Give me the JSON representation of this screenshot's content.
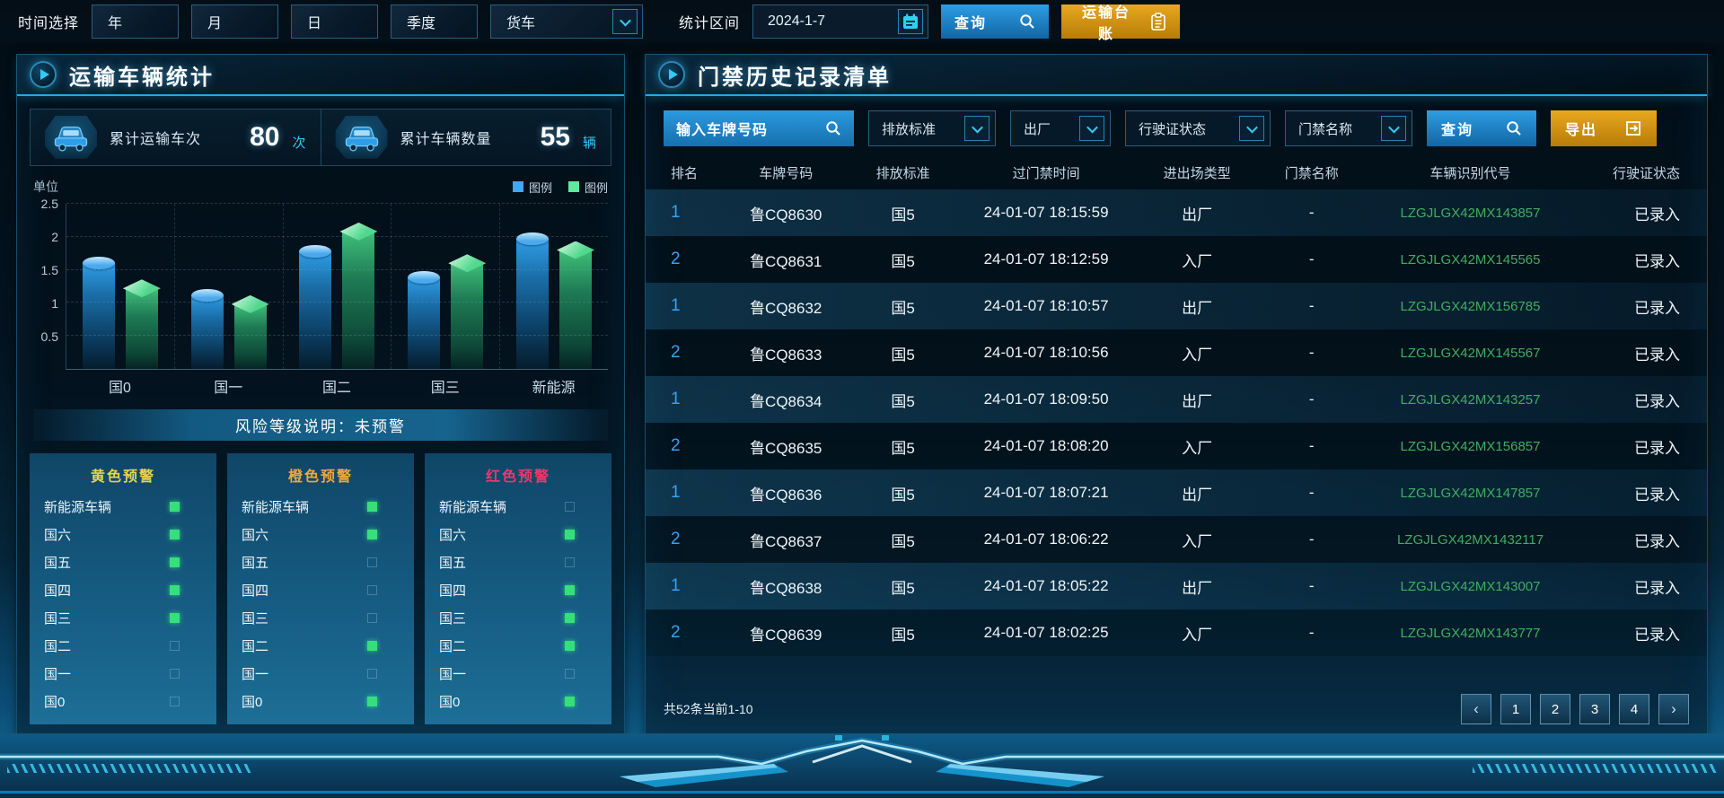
{
  "topbar": {
    "time_label": "时间选择",
    "time_buttons": [
      "年",
      "月",
      "日",
      "季度"
    ],
    "vehicle_select": "货车",
    "range_label": "统计区间",
    "date_value": "2024-1-7",
    "query_label": "查询",
    "ledger_label": "运输台账"
  },
  "left_panel": {
    "title": "运输车辆统计",
    "stats": [
      {
        "label": "累计运输车次",
        "value": "80",
        "unit": "次"
      },
      {
        "label": "累计车辆数量",
        "value": "55",
        "unit": "辆"
      }
    ],
    "risk_note": "风险等级说明：未预警",
    "warnings": {
      "columns": [
        {
          "title": "黄色预警",
          "color": "#e8d34a",
          "items": [
            {
              "label": "新能源车辆",
              "on": true
            },
            {
              "label": "国六",
              "on": true
            },
            {
              "label": "国五",
              "on": true
            },
            {
              "label": "国四",
              "on": true
            },
            {
              "label": "国三",
              "on": true
            },
            {
              "label": "国二",
              "on": false
            },
            {
              "label": "国一",
              "on": false
            },
            {
              "label": "国0",
              "on": false
            }
          ]
        },
        {
          "title": "橙色预警",
          "color": "#f0a83c",
          "items": [
            {
              "label": "新能源车辆",
              "on": true
            },
            {
              "label": "国六",
              "on": true
            },
            {
              "label": "国五",
              "on": false
            },
            {
              "label": "国四",
              "on": false
            },
            {
              "label": "国三",
              "on": false
            },
            {
              "label": "国二",
              "on": true
            },
            {
              "label": "国一",
              "on": false
            },
            {
              "label": "国0",
              "on": true
            }
          ]
        },
        {
          "title": "红色预警",
          "color": "#f0356e",
          "items": [
            {
              "label": "新能源车辆",
              "on": false
            },
            {
              "label": "国六",
              "on": true
            },
            {
              "label": "国五",
              "on": false
            },
            {
              "label": "国四",
              "on": true
            },
            {
              "label": "国三",
              "on": true
            },
            {
              "label": "国二",
              "on": true
            },
            {
              "label": "国一",
              "on": false
            },
            {
              "label": "国0",
              "on": true
            }
          ]
        }
      ]
    }
  },
  "chart_data": {
    "type": "bar",
    "title": "",
    "unit_label": "单位",
    "categories": [
      "国0",
      "国一",
      "国二",
      "国三",
      "新能源"
    ],
    "series": [
      {
        "name": "图例",
        "color": "#41a7f0",
        "values": [
          1.6,
          1.12,
          1.78,
          1.38,
          1.97
        ]
      },
      {
        "name": "图例",
        "color": "#62e89d",
        "values": [
          1.22,
          0.98,
          2.08,
          1.6,
          1.8
        ]
      }
    ],
    "xlabel": "",
    "ylabel": "单位",
    "ylim": [
      0,
      2.5
    ],
    "yticks": [
      0.5,
      1,
      1.5,
      2,
      2.5
    ],
    "grid": "dashed",
    "legend_position": "top-right"
  },
  "right_panel": {
    "title": "门禁历史记录清单",
    "filters": {
      "plate_placeholder": "输入车牌号码",
      "dropdowns": [
        "排放标准",
        "出厂",
        "行驶证状态",
        "门禁名称"
      ],
      "query_label": "查询",
      "export_label": "导出"
    },
    "table": {
      "headers": [
        "排名",
        "车牌号码",
        "排放标准",
        "过门禁时间",
        "进出场类型",
        "门禁名称",
        "车辆识别代号",
        "行驶证状态"
      ],
      "rows": [
        [
          "1",
          "鲁CQ8630",
          "国5",
          "24-01-07 18:15:59",
          "出厂",
          "-",
          "LZGJLGX42MX143857",
          "已录入"
        ],
        [
          "2",
          "鲁CQ8631",
          "国5",
          "24-01-07 18:12:59",
          "入厂",
          "-",
          "LZGJLGX42MX145565",
          "已录入"
        ],
        [
          "1",
          "鲁CQ8632",
          "国5",
          "24-01-07 18:10:57",
          "出厂",
          "-",
          "LZGJLGX42MX156785",
          "已录入"
        ],
        [
          "2",
          "鲁CQ8633",
          "国5",
          "24-01-07 18:10:56",
          "入厂",
          "-",
          "LZGJLGX42MX145567",
          "已录入"
        ],
        [
          "1",
          "鲁CQ8634",
          "国5",
          "24-01-07 18:09:50",
          "出厂",
          "-",
          "LZGJLGX42MX143257",
          "已录入"
        ],
        [
          "2",
          "鲁CQ8635",
          "国5",
          "24-01-07 18:08:20",
          "入厂",
          "-",
          "LZGJLGX42MX156857",
          "已录入"
        ],
        [
          "1",
          "鲁CQ8636",
          "国5",
          "24-01-07 18:07:21",
          "出厂",
          "-",
          "LZGJLGX42MX147857",
          "已录入"
        ],
        [
          "2",
          "鲁CQ8637",
          "国5",
          "24-01-07 18:06:22",
          "入厂",
          "-",
          "LZGJLGX42MX1432117",
          "已录入"
        ],
        [
          "1",
          "鲁CQ8638",
          "国5",
          "24-01-07 18:05:22",
          "出厂",
          "-",
          "LZGJLGX42MX143007",
          "已录入"
        ],
        [
          "2",
          "鲁CQ8639",
          "国5",
          "24-01-07 18:02:25",
          "入厂",
          "-",
          "LZGJLGX42MX143777",
          "已录入"
        ]
      ]
    },
    "pagination": {
      "summary": "共52条当前1-10",
      "prev": "‹",
      "next": "›",
      "pages": [
        "1",
        "2",
        "3",
        "4"
      ],
      "active_page": "1"
    }
  },
  "icons": {
    "search": "magnifier",
    "calendar": "calendar",
    "ledger": "clipboard",
    "export": "export-arrow",
    "panel": "play-triangle",
    "stat": "car",
    "dropdown": "chevron-down"
  },
  "colors": {
    "accent_cyan": "#35c9f5",
    "button_blue": "#2e9de4",
    "button_orange": "#e8a81e",
    "series_blue": "#41a7f0",
    "series_green": "#62e89d",
    "warn_yellow": "#e8d34a",
    "warn_orange": "#f0a83c",
    "warn_red": "#f0356e",
    "rank_blue": "#3ba0f0",
    "vin_green": "#3fae62",
    "indicator_green": "#35e07a"
  }
}
